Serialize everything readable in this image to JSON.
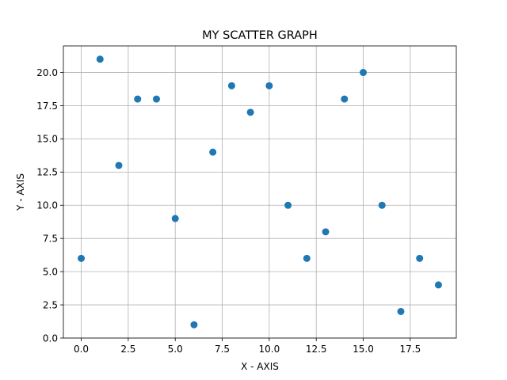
{
  "chart_data": {
    "type": "scatter",
    "title": "MY SCATTER GRAPH",
    "xlabel": "X - AXIS",
    "ylabel": "Y - AXIS",
    "xlim": [
      -0.95,
      19.95
    ],
    "ylim": [
      0,
      22
    ],
    "x_ticks": [
      "0.0",
      "2.5",
      "5.0",
      "7.5",
      "10.0",
      "12.5",
      "15.0",
      "17.5"
    ],
    "y_ticks": [
      "0.0",
      "2.5",
      "5.0",
      "7.5",
      "10.0",
      "12.5",
      "15.0",
      "17.5",
      "20.0"
    ],
    "grid": true,
    "color": "#1f77b4",
    "x": [
      0,
      1,
      2,
      3,
      4,
      5,
      6,
      7,
      8,
      9,
      10,
      11,
      12,
      13,
      14,
      15,
      16,
      17,
      18,
      19
    ],
    "y": [
      6,
      21,
      13,
      18,
      18,
      9,
      1,
      14,
      19,
      17,
      19,
      10,
      6,
      8,
      18,
      20,
      10,
      2,
      6,
      4
    ]
  }
}
